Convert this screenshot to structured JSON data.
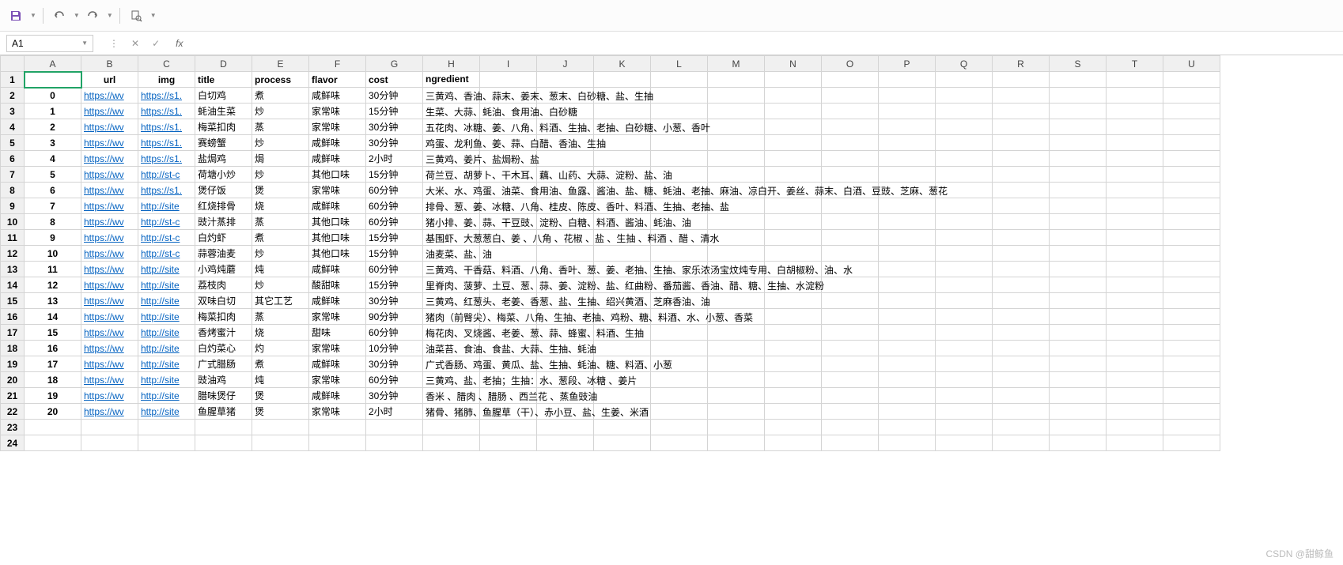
{
  "toolbar": {
    "save_icon": "save",
    "undo_icon": "undo",
    "redo_icon": "redo",
    "print_icon": "print-preview"
  },
  "namebox": {
    "value": "A1"
  },
  "fx_label": "fx",
  "columns": [
    "A",
    "B",
    "C",
    "D",
    "E",
    "F",
    "G",
    "H",
    "I",
    "J",
    "K",
    "L",
    "M",
    "N",
    "O",
    "P",
    "Q",
    "R",
    "S",
    "T",
    "U"
  ],
  "header_row": {
    "A": "",
    "B": "url",
    "C": "img",
    "D": "title",
    "E": "process",
    "F": "flavor",
    "G": "cost",
    "H": "ngredient"
  },
  "rows": [
    {
      "n": "0",
      "url": "https://wv",
      "img": "https://s1.",
      "title": "白切鸡",
      "process": "煮",
      "flavor": "咸鲜味",
      "cost": "30分钟",
      "ing": "三黄鸡、香油、蒜末、姜末、葱末、白砂糖、盐、生抽"
    },
    {
      "n": "1",
      "url": "https://wv",
      "img": "https://s1.",
      "title": "蚝油生菜",
      "process": "炒",
      "flavor": "家常味",
      "cost": "15分钟",
      "ing": "生菜、大蒜、蚝油、食用油、白砂糖"
    },
    {
      "n": "2",
      "url": "https://wv",
      "img": "https://s1.",
      "title": "梅菜扣肉",
      "process": "蒸",
      "flavor": "家常味",
      "cost": "30分钟",
      "ing": "五花肉、冰糖、姜、八角、料酒、生抽、老抽、白砂糖、小葱、香叶"
    },
    {
      "n": "3",
      "url": "https://wv",
      "img": "https://s1.",
      "title": "赛螃蟹",
      "process": "炒",
      "flavor": "咸鲜味",
      "cost": "30分钟",
      "ing": "鸡蛋、龙利鱼、姜、蒜、白醋、香油、生抽"
    },
    {
      "n": "4",
      "url": "https://wv",
      "img": "https://s1.",
      "title": "盐焗鸡",
      "process": "焗",
      "flavor": "咸鲜味",
      "cost": "2小时",
      "ing": "三黄鸡、姜片、盐焗粉、盐"
    },
    {
      "n": "5",
      "url": "https://wv",
      "img": "http://st-c",
      "title": "荷塘小炒",
      "process": "炒",
      "flavor": "其他口味",
      "cost": "15分钟",
      "ing": "荷兰豆、胡萝卜、干木耳、藕、山药、大蒜、淀粉、盐、油"
    },
    {
      "n": "6",
      "url": "https://wv",
      "img": "https://s1.",
      "title": "煲仔饭",
      "process": "煲",
      "flavor": "家常味",
      "cost": "60分钟",
      "ing": "大米、水、鸡蛋、油菜、食用油、鱼露、酱油、盐、糖、蚝油、老抽、麻油、凉白开、姜丝、蒜末、白酒、豆豉、芝麻、葱花"
    },
    {
      "n": "7",
      "url": "https://wv",
      "img": "http://site",
      "title": "红烧排骨",
      "process": "烧",
      "flavor": "咸鲜味",
      "cost": "60分钟",
      "ing": "排骨、葱、姜、冰糖、八角、桂皮、陈皮、香叶、料酒、生抽、老抽、盐"
    },
    {
      "n": "8",
      "url": "https://wv",
      "img": "http://st-c",
      "title": "豉汁蒸排",
      "process": "蒸",
      "flavor": "其他口味",
      "cost": "60分钟",
      "ing": "猪小排、姜、蒜、干豆豉、淀粉、白糖、料酒、酱油、蚝油、油"
    },
    {
      "n": "9",
      "url": "https://wv",
      "img": "http://st-c",
      "title": "白灼虾",
      "process": "煮",
      "flavor": "其他口味",
      "cost": "15分钟",
      "ing": "基围虾、大葱葱白、姜 、八角 、花椒 、盐  、生抽 、料酒 、醋  、清水"
    },
    {
      "n": "10",
      "url": "https://wv",
      "img": "http://st-c",
      "title": "蒜蓉油麦",
      "process": "炒",
      "flavor": "其他口味",
      "cost": "15分钟",
      "ing": "油麦菜、盐、油"
    },
    {
      "n": "11",
      "url": "https://wv",
      "img": "http://site",
      "title": "小鸡炖蘑",
      "process": "炖",
      "flavor": "咸鲜味",
      "cost": "60分钟",
      "ing": "三黄鸡、干香菇、料酒、八角、香叶、葱、姜、老抽、生抽、家乐浓汤宝炆炖专用、白胡椒粉、油、水"
    },
    {
      "n": "12",
      "url": "https://wv",
      "img": "http://site",
      "title": "荔枝肉",
      "process": "炒",
      "flavor": "酸甜味",
      "cost": "15分钟",
      "ing": "里脊肉、菠萝、土豆、葱、蒜、姜、淀粉、盐、红曲粉、番茄酱、香油、醋、糖、生抽、水淀粉"
    },
    {
      "n": "13",
      "url": "https://wv",
      "img": "http://site",
      "title": "双味白切",
      "process": "其它工艺",
      "flavor": "咸鲜味",
      "cost": "30分钟",
      "ing": "三黄鸡、红葱头、老姜、香葱、盐、生抽、绍兴黄酒、芝麻香油、油"
    },
    {
      "n": "14",
      "url": "https://wv",
      "img": "http://site",
      "title": "梅菜扣肉",
      "process": "蒸",
      "flavor": "家常味",
      "cost": "90分钟",
      "ing": "猪肉（前臀尖）、梅菜、八角、生抽、老抽、鸡粉、糖、料酒、水、小葱、香菜"
    },
    {
      "n": "15",
      "url": "https://wv",
      "img": "http://site",
      "title": "香烤蜜汁",
      "process": "烧",
      "flavor": "甜味",
      "cost": "60分钟",
      "ing": "梅花肉、叉烧酱、老姜、葱、蒜、蜂蜜、料酒、生抽"
    },
    {
      "n": "16",
      "url": "https://wv",
      "img": "http://site",
      "title": "白灼菜心",
      "process": "灼",
      "flavor": "家常味",
      "cost": "10分钟",
      "ing": "油菜苔、食油、食盐、大蒜、生抽、蚝油"
    },
    {
      "n": "17",
      "url": "https://wv",
      "img": "http://site",
      "title": "广式腊肠",
      "process": "煮",
      "flavor": "咸鲜味",
      "cost": "30分钟",
      "ing": "广式香肠、鸡蛋、黄瓜、盐、生抽、蚝油、糖、料酒、小葱"
    },
    {
      "n": "18",
      "url": "https://wv",
      "img": "http://site",
      "title": "豉油鸡",
      "process": "炖",
      "flavor": "家常味",
      "cost": "60分钟",
      "ing": "三黄鸡、盐、老抽；生抽：水、葱段、冰糖 、姜片"
    },
    {
      "n": "19",
      "url": "https://wv",
      "img": "http://site",
      "title": "腊味煲仔",
      "process": "煲",
      "flavor": "咸鲜味",
      "cost": "30分钟",
      "ing": "香米   、腊肉   、腊肠 、西兰花   、蒸鱼豉油"
    },
    {
      "n": "20",
      "url": "https://wv",
      "img": "http://site",
      "title": "鱼腥草猪",
      "process": "煲",
      "flavor": "家常味",
      "cost": "2小时",
      "ing": "猪骨、猪肺、鱼腥草（干）、赤小豆、盐、生姜、米酒"
    }
  ],
  "empty_rows": [
    "23",
    "24"
  ],
  "watermark": "CSDN @甜鲸鱼"
}
